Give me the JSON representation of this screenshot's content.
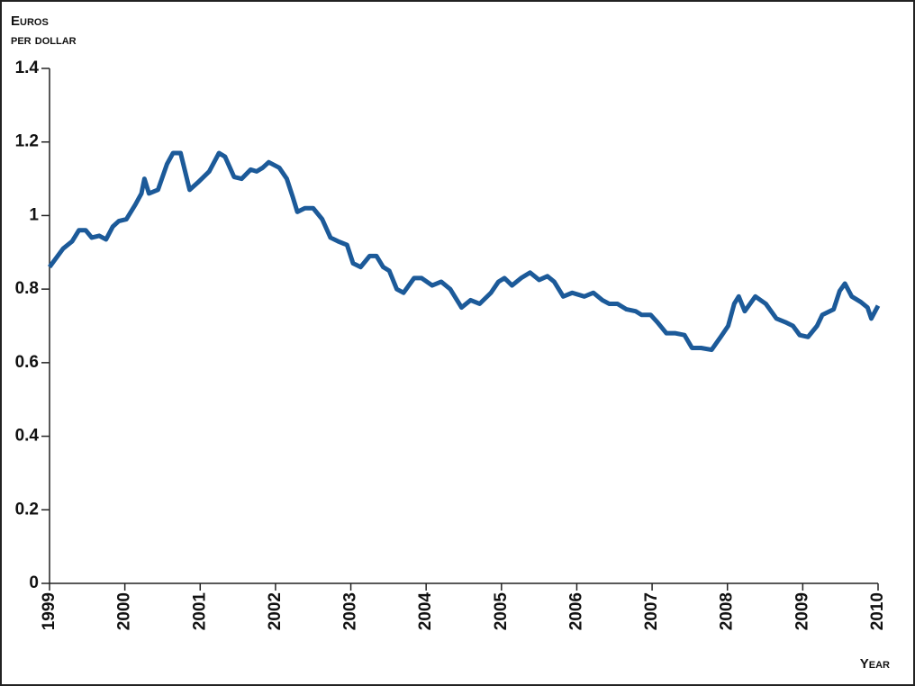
{
  "chart_data": {
    "type": "line",
    "ylabel": [
      "Euros",
      "per dollar"
    ],
    "xlabel": "Year",
    "xlim": [
      1999,
      2010
    ],
    "xticks": [
      1999,
      2000,
      2001,
      2002,
      2003,
      2004,
      2005,
      2006,
      2007,
      2008,
      2009,
      2010
    ],
    "ylim": [
      0,
      1.4
    ],
    "yticks": [
      0,
      0.2,
      0.4,
      0.6,
      0.8,
      1,
      1.2,
      1.4
    ],
    "grid": false,
    "x": [
      1999.0,
      1999.18,
      1999.3,
      1999.39,
      1999.48,
      1999.56,
      1999.66,
      1999.75,
      1999.84,
      1999.92,
      2000.02,
      2000.14,
      2000.22,
      2000.26,
      2000.32,
      2000.44,
      2000.56,
      2000.64,
      2000.74,
      2000.86,
      2000.97,
      2001.12,
      2001.25,
      2001.33,
      2001.45,
      2001.55,
      2001.67,
      2001.75,
      2001.83,
      2001.91,
      2002.05,
      2002.15,
      2002.23,
      2002.29,
      2002.39,
      2002.5,
      2002.62,
      2002.73,
      2002.83,
      2002.95,
      2003.03,
      2003.13,
      2003.25,
      2003.34,
      2003.43,
      2003.51,
      2003.61,
      2003.7,
      2003.84,
      2003.94,
      2004.08,
      2004.2,
      2004.32,
      2004.47,
      2004.59,
      2004.71,
      2004.86,
      2004.96,
      2005.04,
      2005.14,
      2005.26,
      2005.38,
      2005.5,
      2005.61,
      2005.7,
      2005.82,
      2005.94,
      2006.1,
      2006.22,
      2006.34,
      2006.43,
      2006.54,
      2006.66,
      2006.78,
      2006.86,
      2006.98,
      2007.07,
      2007.19,
      2007.31,
      2007.43,
      2007.53,
      2007.65,
      2007.79,
      2007.91,
      2008.01,
      2008.09,
      2008.15,
      2008.23,
      2008.37,
      2008.51,
      2008.65,
      2008.77,
      2008.87,
      2008.96,
      2009.07,
      2009.19,
      2009.26,
      2009.41,
      2009.49,
      2009.56,
      2009.65,
      2009.77,
      2009.86,
      2009.91,
      2010.0
    ],
    "series": [
      {
        "color": "#1c5a99",
        "values": [
          0.86,
          0.91,
          0.93,
          0.96,
          0.96,
          0.94,
          0.945,
          0.935,
          0.97,
          0.985,
          0.99,
          1.03,
          1.06,
          1.1,
          1.06,
          1.07,
          1.14,
          1.17,
          1.17,
          1.07,
          1.09,
          1.12,
          1.17,
          1.16,
          1.105,
          1.1,
          1.125,
          1.12,
          1.13,
          1.145,
          1.13,
          1.1,
          1.05,
          1.01,
          1.02,
          1.02,
          0.99,
          0.94,
          0.93,
          0.92,
          0.87,
          0.86,
          0.89,
          0.89,
          0.86,
          0.85,
          0.8,
          0.79,
          0.83,
          0.83,
          0.81,
          0.82,
          0.8,
          0.75,
          0.77,
          0.76,
          0.79,
          0.82,
          0.83,
          0.81,
          0.83,
          0.845,
          0.825,
          0.835,
          0.82,
          0.78,
          0.79,
          0.78,
          0.79,
          0.77,
          0.76,
          0.76,
          0.745,
          0.74,
          0.73,
          0.73,
          0.71,
          0.68,
          0.68,
          0.675,
          0.64,
          0.64,
          0.635,
          0.67,
          0.7,
          0.76,
          0.78,
          0.74,
          0.78,
          0.76,
          0.72,
          0.71,
          0.7,
          0.675,
          0.67,
          0.7,
          0.73,
          0.745,
          0.795,
          0.815,
          0.78,
          0.765,
          0.75,
          0.72,
          0.755
        ]
      }
    ]
  }
}
